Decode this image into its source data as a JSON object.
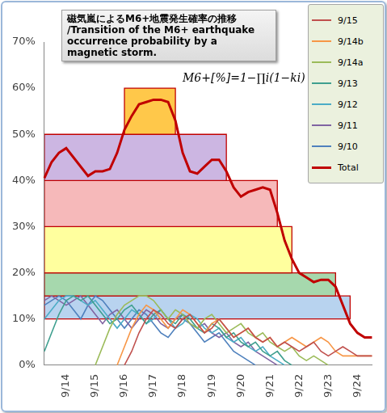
{
  "chart_data": {
    "type": "line",
    "title": [
      "磁気嵐によるM6+地震発生確率の推移",
      "/Transition of the M6+ earthquake",
      "occurrence probability by a magnetic storm."
    ],
    "annotation": "M6+[%]=1−∏i(1−ki)",
    "categories": [
      null,
      null,
      null,
      "9/14",
      null,
      null,
      null,
      "9/15",
      null,
      null,
      null,
      "9/16",
      null,
      null,
      null,
      "9/17",
      null,
      null,
      null,
      "9/18",
      null,
      null,
      null,
      "9/19",
      null,
      null,
      null,
      "9/20",
      null,
      null,
      null,
      "9/21",
      null,
      null,
      null,
      "9/22",
      null,
      null,
      null,
      "9/23",
      null,
      null,
      null,
      "9/24",
      null,
      null
    ],
    "series": [
      {
        "name": "9/15",
        "color": "#c0504d",
        "line_style": "solid",
        "values": [
          null,
          null,
          null,
          null,
          null,
          null,
          null,
          null,
          null,
          null,
          null,
          0,
          3,
          7,
          10,
          12,
          11,
          9,
          8,
          10,
          11,
          9,
          7,
          8,
          10,
          8,
          6,
          7,
          8,
          6,
          5,
          6,
          4,
          5,
          4,
          3,
          4,
          5,
          3,
          2,
          3,
          4,
          3,
          2,
          2,
          2
        ]
      },
      {
        "name": "9/14b",
        "color": "#f79646",
        "line_style": "solid",
        "values": [
          null,
          null,
          null,
          null,
          null,
          null,
          null,
          null,
          null,
          null,
          0,
          4,
          8,
          11,
          13,
          12,
          10,
          8,
          10,
          12,
          11,
          9,
          7,
          9,
          10,
          8,
          6,
          7,
          8,
          6,
          5,
          6,
          4,
          5,
          6,
          5,
          4,
          5,
          6,
          5,
          3,
          2,
          2,
          2,
          2,
          2
        ]
      },
      {
        "name": "9/14a",
        "color": "#9bbb59",
        "line_style": "solid",
        "values": [
          null,
          null,
          null,
          null,
          null,
          null,
          null,
          0,
          4,
          8,
          11,
          13,
          14,
          15,
          15,
          14,
          12,
          10,
          12,
          11,
          9,
          8,
          10,
          11,
          9,
          7,
          8,
          9,
          7,
          6,
          7,
          5,
          4,
          3,
          4,
          2,
          1,
          2,
          1,
          0,
          null,
          null,
          null,
          null,
          null,
          null
        ]
      },
      {
        "name": "9/13",
        "color": "#3f9f8f",
        "line_style": "solid",
        "values": [
          3,
          7,
          11,
          14,
          15,
          14,
          15,
          13,
          11,
          9,
          10,
          12,
          13,
          11,
          9,
          11,
          12,
          10,
          9,
          11,
          10,
          8,
          7,
          9,
          8,
          6,
          7,
          5,
          4,
          5,
          3,
          2,
          3,
          1,
          0,
          null,
          null,
          null,
          null,
          null,
          null,
          null,
          null,
          null,
          null,
          null
        ]
      },
      {
        "name": "9/12",
        "color": "#4bacc6",
        "line_style": "solid",
        "values": [
          10,
          12,
          14,
          15,
          15,
          14,
          13,
          14,
          12,
          10,
          8,
          10,
          12,
          11,
          9,
          10,
          12,
          10,
          8,
          9,
          11,
          10,
          8,
          7,
          8,
          6,
          5,
          6,
          4,
          3,
          4,
          2,
          1,
          0,
          null,
          null,
          null,
          null,
          null,
          null,
          null,
          null,
          null,
          null,
          null,
          null
        ]
      },
      {
        "name": "9/11",
        "color": "#8064a2",
        "line_style": "solid",
        "values": [
          14,
          15,
          14,
          13,
          14,
          15,
          13,
          11,
          9,
          11,
          12,
          10,
          8,
          10,
          12,
          11,
          9,
          8,
          10,
          11,
          9,
          8,
          9,
          7,
          6,
          7,
          5,
          4,
          5,
          3,
          2,
          1,
          0,
          null,
          null,
          null,
          null,
          null,
          null,
          null,
          null,
          null,
          null,
          null,
          null,
          null
        ]
      },
      {
        "name": "9/10",
        "color": "#4f81bd",
        "line_style": "solid",
        "values": [
          13,
          14,
          15,
          14,
          12,
          10,
          13,
          15,
          14,
          12,
          10,
          8,
          10,
          12,
          11,
          9,
          7,
          6,
          8,
          10,
          9,
          7,
          5,
          6,
          7,
          5,
          3,
          2,
          1,
          0,
          null,
          null,
          null,
          null,
          null,
          null,
          null,
          null,
          null,
          null,
          null,
          null,
          null,
          null,
          null,
          null
        ]
      },
      {
        "name": "Total",
        "color": "#c00000",
        "line_style": "bold",
        "values": [
          40.5,
          44,
          46,
          47,
          45,
          43,
          41,
          42,
          42,
          42.5,
          46,
          51,
          54,
          56.5,
          57,
          57.5,
          57.5,
          57,
          53,
          46,
          42,
          41.5,
          43,
          44.5,
          44.5,
          42,
          38.5,
          36.5,
          37.5,
          38,
          38.5,
          38,
          33,
          27,
          23,
          20,
          19,
          18,
          18.5,
          18.5,
          17,
          13,
          9,
          7,
          6,
          6
        ]
      }
    ],
    "bands": [
      {
        "color": "#b8d3ef",
        "low": 10,
        "values": [
          15,
          15,
          15,
          15,
          15,
          15,
          15,
          15,
          15,
          15,
          15,
          15,
          15,
          15,
          15,
          15,
          15,
          15,
          15,
          15,
          15,
          15,
          15,
          15,
          15,
          15,
          15,
          15,
          15,
          15,
          15,
          15,
          15,
          15,
          15,
          15,
          15,
          15,
          15,
          15,
          15,
          15,
          15,
          null,
          null,
          null
        ]
      },
      {
        "color": "#a6d8ad",
        "low": 15,
        "values": [
          20,
          20,
          20,
          20,
          20,
          20,
          20,
          20,
          20,
          20,
          20,
          20,
          20,
          20,
          20,
          20,
          20,
          20,
          20,
          20,
          20,
          20,
          20,
          20,
          20,
          20,
          20,
          20,
          20,
          20,
          20,
          20,
          20,
          20,
          20,
          20,
          20,
          20,
          20,
          20,
          20,
          null,
          null,
          null,
          null,
          null
        ]
      },
      {
        "color": "#ffff9e",
        "low": 20,
        "values": [
          30,
          30,
          30,
          30,
          30,
          30,
          30,
          30,
          30,
          30,
          30,
          30,
          30,
          30,
          30,
          30,
          30,
          30,
          30,
          30,
          30,
          30,
          30,
          30,
          30,
          30,
          30,
          30,
          30,
          30,
          30,
          30,
          30,
          30,
          30,
          null,
          null,
          null,
          null,
          null,
          null,
          null,
          null,
          null,
          null,
          null
        ]
      },
      {
        "color": "#f6b9ba",
        "low": 30,
        "values": [
          40,
          40,
          40,
          40,
          40,
          40,
          40,
          40,
          40,
          40,
          40,
          40,
          40,
          40,
          40,
          40,
          40,
          40,
          40,
          40,
          40,
          40,
          40,
          40,
          40,
          40,
          40,
          40,
          40,
          40,
          40,
          40,
          40,
          null,
          null,
          null,
          null,
          null,
          null,
          null,
          null,
          null,
          null,
          null,
          null,
          null
        ]
      },
      {
        "color": "#ccb6e2",
        "low": 40,
        "values": [
          50,
          50,
          50,
          50,
          50,
          50,
          50,
          50,
          50,
          50,
          50,
          50,
          50,
          50,
          50,
          50,
          50,
          50,
          50,
          50,
          50,
          50,
          50,
          50,
          50,
          50,
          null,
          null,
          null,
          null,
          null,
          null,
          null,
          null,
          null,
          null,
          null,
          null,
          null,
          null,
          null,
          null,
          null,
          null,
          null,
          null
        ]
      },
      {
        "color": "#ffc84a",
        "low": 50,
        "values": [
          null,
          null,
          null,
          null,
          null,
          null,
          null,
          null,
          null,
          null,
          null,
          60,
          60,
          60,
          60,
          60,
          60,
          60,
          60,
          null,
          null,
          null,
          null,
          null,
          null,
          null,
          null,
          null,
          null,
          null,
          null,
          null,
          null,
          null,
          null,
          null,
          null,
          null,
          null,
          null,
          null,
          null,
          null,
          null,
          null,
          null
        ]
      }
    ],
    "ylim": [
      0,
      70
    ],
    "yticks": [
      {
        "value": 0,
        "label": "0%"
      },
      {
        "value": 10,
        "label": "10%"
      },
      {
        "value": 20,
        "label": "20%"
      },
      {
        "value": 30,
        "label": "30%"
      },
      {
        "value": 40,
        "label": "40%"
      },
      {
        "value": 50,
        "label": "50%"
      },
      {
        "value": 60,
        "label": "60%"
      },
      {
        "value": 70,
        "label": "70%"
      }
    ],
    "grid": false,
    "legend": "top-right"
  }
}
